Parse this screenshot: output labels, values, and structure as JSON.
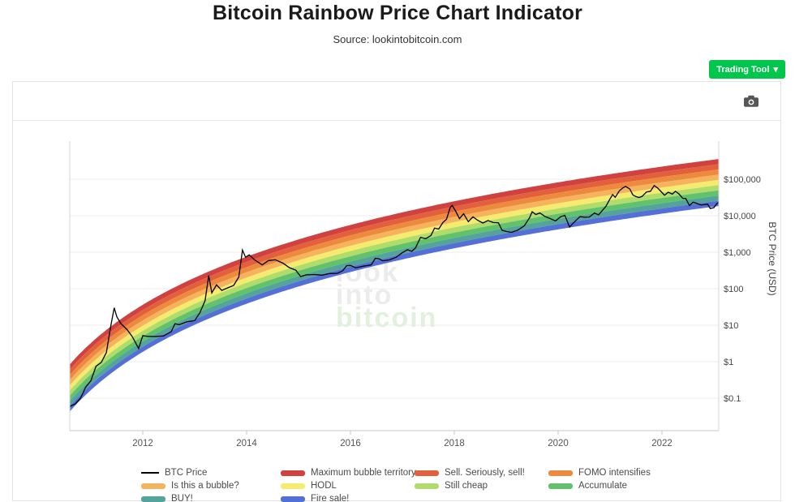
{
  "header": {
    "title": "Bitcoin Rainbow Price Chart Indicator",
    "subtitle": "Source: lookintobitcoin.com"
  },
  "toolbar": {
    "trading_tool_label": "Trading Tool",
    "trading_tool_caret": "▾"
  },
  "watermark": {
    "lines": [
      {
        "text": "look",
        "color": "#ececec"
      },
      {
        "text": "into",
        "color": "#ececec"
      },
      {
        "text": "bitcoin",
        "color": "#e2f0dd"
      }
    ]
  },
  "chart_data": {
    "type": "area",
    "title": "Bitcoin Rainbow Price Chart Indicator",
    "ylabel": "BTC Price (USD)",
    "y_scale": "log10",
    "x_range": [
      2010.594,
      2023.09
    ],
    "y_log10_range": [
      -1.956,
      5.933
    ],
    "grid": true,
    "x_ticks": [
      {
        "label": "2012",
        "year": 2012
      },
      {
        "label": "2014",
        "year": 2014
      },
      {
        "label": "2016",
        "year": 2016
      },
      {
        "label": "2018",
        "year": 2018
      },
      {
        "label": "2020",
        "year": 2020
      },
      {
        "label": "2022",
        "year": 2022
      }
    ],
    "y_ticks": [
      {
        "label": "$100,000",
        "log10": 5
      },
      {
        "label": "$10,000",
        "log10": 4
      },
      {
        "label": "$1,000",
        "log10": 3
      },
      {
        "label": "$100",
        "log10": 2
      },
      {
        "label": "$10",
        "log10": 1
      },
      {
        "label": "$1",
        "log10": 0
      },
      {
        "label": "$0.1",
        "log10": -1
      }
    ],
    "bands": {
      "names_top_to_bottom": [
        "Maximum bubble territory",
        "Sell. Seriously, sell!",
        "FOMO intensifies",
        "Is this a bubble?",
        "HODL",
        "Still cheap",
        "Accumulate",
        "BUY!",
        "Fire sale!"
      ],
      "colors_top_to_bottom": [
        "#d1413f",
        "#e2603c",
        "#ee8a3e",
        "#f4b35c",
        "#f5ec6f",
        "#b0dc6c",
        "#62c26b",
        "#54a49b",
        "#5470d6"
      ],
      "model": {
        "description": "log10(price_center) = a * ln(year - origin_year) + b; rainbow spans center ± half_width_decades split into num_bands equal log bands",
        "a": 2.583,
        "b": -1.924,
        "origin_year": 2009,
        "half_width_decades": 0.645,
        "num_bands": 9
      }
    },
    "btc_price": {
      "name": "BTC Price",
      "color": "#000000",
      "points": [
        [
          2010.6,
          0.06
        ],
        [
          2010.7,
          0.07
        ],
        [
          2010.8,
          0.1
        ],
        [
          2010.9,
          0.2
        ],
        [
          2011.0,
          0.3
        ],
        [
          2011.1,
          0.75
        ],
        [
          2011.2,
          0.95
        ],
        [
          2011.3,
          1.8
        ],
        [
          2011.38,
          8.9
        ],
        [
          2011.45,
          30
        ],
        [
          2011.5,
          17
        ],
        [
          2011.58,
          11
        ],
        [
          2011.7,
          7.5
        ],
        [
          2011.8,
          4.8
        ],
        [
          2011.92,
          2.3
        ],
        [
          2012.0,
          5.2
        ],
        [
          2012.1,
          4.9
        ],
        [
          2012.25,
          4.9
        ],
        [
          2012.4,
          5.1
        ],
        [
          2012.55,
          6.7
        ],
        [
          2012.62,
          11.0
        ],
        [
          2012.7,
          10.3
        ],
        [
          2012.85,
          12.4
        ],
        [
          2013.0,
          13.4
        ],
        [
          2013.1,
          22
        ],
        [
          2013.2,
          47
        ],
        [
          2013.27,
          230
        ],
        [
          2013.33,
          77
        ],
        [
          2013.42,
          128
        ],
        [
          2013.52,
          90
        ],
        [
          2013.62,
          103
        ],
        [
          2013.75,
          123
        ],
        [
          2013.85,
          210
        ],
        [
          2013.92,
          1150
        ],
        [
          2013.98,
          730
        ],
        [
          2014.05,
          850
        ],
        [
          2014.15,
          620
        ],
        [
          2014.3,
          450
        ],
        [
          2014.42,
          590
        ],
        [
          2014.55,
          620
        ],
        [
          2014.7,
          500
        ],
        [
          2014.82,
          380
        ],
        [
          2014.95,
          320
        ],
        [
          2015.04,
          215
        ],
        [
          2015.15,
          240
        ],
        [
          2015.3,
          245
        ],
        [
          2015.45,
          235
        ],
        [
          2015.6,
          260
        ],
        [
          2015.75,
          265
        ],
        [
          2015.85,
          310
        ],
        [
          2015.93,
          430
        ],
        [
          2016.0,
          435
        ],
        [
          2016.1,
          375
        ],
        [
          2016.25,
          415
        ],
        [
          2016.4,
          450
        ],
        [
          2016.48,
          680
        ],
        [
          2016.55,
          660
        ],
        [
          2016.62,
          580
        ],
        [
          2016.75,
          615
        ],
        [
          2016.88,
          730
        ],
        [
          2017.0,
          970
        ],
        [
          2017.1,
          1180
        ],
        [
          2017.18,
          1050
        ],
        [
          2017.25,
          1290
        ],
        [
          2017.35,
          2550
        ],
        [
          2017.45,
          2350
        ],
        [
          2017.55,
          2870
        ],
        [
          2017.62,
          4600
        ],
        [
          2017.7,
          4300
        ],
        [
          2017.78,
          6500
        ],
        [
          2017.85,
          8000
        ],
        [
          2017.92,
          16700
        ],
        [
          2017.96,
          19200
        ],
        [
          2018.02,
          13800
        ],
        [
          2018.1,
          8300
        ],
        [
          2018.18,
          11300
        ],
        [
          2018.27,
          6900
        ],
        [
          2018.36,
          9300
        ],
        [
          2018.45,
          7500
        ],
        [
          2018.55,
          6300
        ],
        [
          2018.65,
          7400
        ],
        [
          2018.75,
          6500
        ],
        [
          2018.85,
          6400
        ],
        [
          2018.92,
          4000
        ],
        [
          2019.0,
          3700
        ],
        [
          2019.1,
          3500
        ],
        [
          2019.22,
          4000
        ],
        [
          2019.35,
          5300
        ],
        [
          2019.45,
          8800
        ],
        [
          2019.5,
          12900
        ],
        [
          2019.57,
          10800
        ],
        [
          2019.65,
          11900
        ],
        [
          2019.75,
          9500
        ],
        [
          2019.85,
          8300
        ],
        [
          2019.95,
          7200
        ],
        [
          2020.05,
          9400
        ],
        [
          2020.13,
          10200
        ],
        [
          2020.22,
          4900
        ],
        [
          2020.32,
          6900
        ],
        [
          2020.42,
          9400
        ],
        [
          2020.52,
          9100
        ],
        [
          2020.6,
          9200
        ],
        [
          2020.7,
          11900
        ],
        [
          2020.78,
          10500
        ],
        [
          2020.85,
          13800
        ],
        [
          2020.92,
          18000
        ],
        [
          2021.0,
          29000
        ],
        [
          2021.05,
          38000
        ],
        [
          2021.1,
          32000
        ],
        [
          2021.18,
          48000
        ],
        [
          2021.25,
          58500
        ],
        [
          2021.3,
          63500
        ],
        [
          2021.38,
          54000
        ],
        [
          2021.44,
          37000
        ],
        [
          2021.5,
          33500
        ],
        [
          2021.56,
          31500
        ],
        [
          2021.62,
          34000
        ],
        [
          2021.7,
          44500
        ],
        [
          2021.78,
          47000
        ],
        [
          2021.85,
          67000
        ],
        [
          2021.92,
          57000
        ],
        [
          2021.98,
          46500
        ],
        [
          2022.05,
          36500
        ],
        [
          2022.12,
          44000
        ],
        [
          2022.2,
          39000
        ],
        [
          2022.26,
          47000
        ],
        [
          2022.33,
          39500
        ],
        [
          2022.4,
          30000
        ],
        [
          2022.46,
          29500
        ],
        [
          2022.53,
          19000
        ],
        [
          2022.6,
          23500
        ],
        [
          2022.68,
          21500
        ],
        [
          2022.75,
          19800
        ],
        [
          2022.82,
          20200
        ],
        [
          2022.88,
          20800
        ],
        [
          2022.93,
          15800
        ],
        [
          2023.0,
          16700
        ],
        [
          2023.05,
          21000
        ],
        [
          2023.09,
          23100
        ]
      ]
    }
  },
  "legend": {
    "items": [
      {
        "label": "BTC Price",
        "type": "line",
        "color": "#000000"
      },
      {
        "label": "Maximum bubble territory",
        "type": "band",
        "color": "#d1413f"
      },
      {
        "label": "Sell. Seriously, sell!",
        "type": "band",
        "color": "#e2603c"
      },
      {
        "label": "FOMO intensifies",
        "type": "band",
        "color": "#ee8a3e"
      },
      {
        "label": "Is this a bubble?",
        "type": "band",
        "color": "#f4b35c"
      },
      {
        "label": "HODL",
        "type": "band",
        "color": "#f5ec6f"
      },
      {
        "label": "Still cheap",
        "type": "band",
        "color": "#b0dc6c"
      },
      {
        "label": "Accumulate",
        "type": "band",
        "color": "#62c26b"
      },
      {
        "label": "BUY!",
        "type": "band",
        "color": "#54a49b"
      },
      {
        "label": "Fire sale!",
        "type": "band",
        "color": "#5470d6"
      }
    ]
  }
}
